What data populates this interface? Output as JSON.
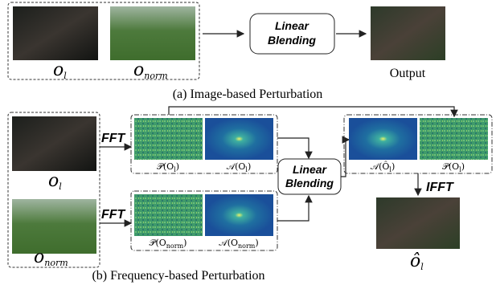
{
  "image_based": {
    "input_low": {
      "base": "o",
      "sub": "l"
    },
    "input_norm": {
      "base": "o",
      "sub": "norm"
    },
    "blend": [
      "Linear",
      "Blending"
    ],
    "output": "Output",
    "caption": "(a) Image-based Perturbation"
  },
  "frequency_based": {
    "input_low": {
      "base": "o",
      "sub": "l"
    },
    "input_norm": {
      "base": "o",
      "sub": "norm"
    },
    "fft_top": "FFT",
    "fft_bottom": "FFT",
    "phase_low": {
      "pre": "𝒫(O",
      "sub": "l",
      "post": ")"
    },
    "amp_low": {
      "pre": "𝒜(O",
      "sub": "l",
      "post": ")"
    },
    "phase_norm": {
      "pre": "𝒫(O",
      "sub": "norm",
      "post": ")"
    },
    "amp_norm": {
      "pre": "𝒜(O",
      "sub": "norm",
      "post": ")"
    },
    "blend": [
      "Linear",
      "Blending"
    ],
    "amp_mixed": {
      "pre": "𝒜(Ô",
      "sub": "l",
      "post": ")"
    },
    "phase_out": {
      "pre": "𝒫(O",
      "sub": "l",
      "post": ")"
    },
    "ifft": "IFFT",
    "output": {
      "base": "ô",
      "sub": "l"
    },
    "caption": "(b) Frequency-based Perturbation"
  }
}
